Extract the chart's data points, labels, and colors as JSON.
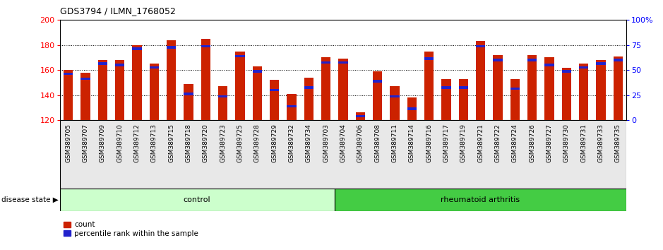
{
  "title": "GDS3794 / ILMN_1768052",
  "samples": [
    "GSM389705",
    "GSM389707",
    "GSM389709",
    "GSM389710",
    "GSM389712",
    "GSM389713",
    "GSM389715",
    "GSM389718",
    "GSM389720",
    "GSM389723",
    "GSM389725",
    "GSM389728",
    "GSM389729",
    "GSM389732",
    "GSM389734",
    "GSM389703",
    "GSM389704",
    "GSM389706",
    "GSM389708",
    "GSM389711",
    "GSM389714",
    "GSM389716",
    "GSM389717",
    "GSM389719",
    "GSM389721",
    "GSM389722",
    "GSM389724",
    "GSM389726",
    "GSM389727",
    "GSM389730",
    "GSM389731",
    "GSM389733",
    "GSM389735"
  ],
  "counts": [
    160,
    158,
    168,
    168,
    180,
    165,
    184,
    149,
    185,
    147,
    175,
    163,
    152,
    141,
    154,
    170,
    169,
    126,
    159,
    147,
    138,
    175,
    153,
    153,
    183,
    172,
    153,
    172,
    170,
    162,
    165,
    168,
    171
  ],
  "percentile_ranks": [
    156,
    152,
    164,
    163,
    176,
    161,
    177,
    140,
    178,
    138,
    170,
    158,
    143,
    130,
    145,
    165,
    165,
    122,
    150,
    138,
    128,
    168,
    145,
    145,
    178,
    167,
    144,
    167,
    163,
    158,
    161,
    164,
    167
  ],
  "n_control": 16,
  "ylim_left": [
    120,
    200
  ],
  "ylim_right": [
    0,
    100
  ],
  "yticks_left": [
    120,
    140,
    160,
    180,
    200
  ],
  "yticks_right": [
    0,
    25,
    50,
    75,
    100
  ],
  "bar_color": "#cc2200",
  "percentile_color": "#2222cc",
  "control_color": "#ccffcc",
  "ra_color": "#44cc44",
  "control_label": "control",
  "ra_label": "rheumatoid arthritis",
  "legend_count": "count",
  "legend_pct": "percentile rank within the sample",
  "disease_state_label": "disease state"
}
